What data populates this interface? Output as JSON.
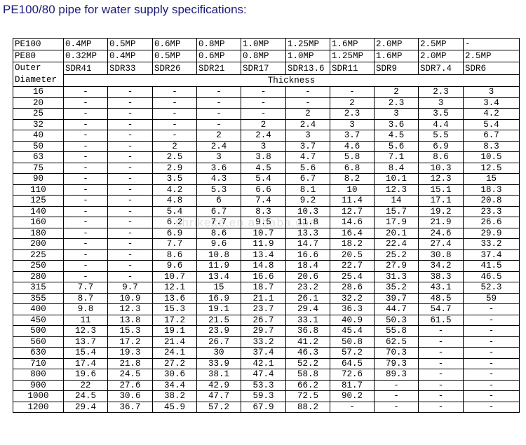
{
  "title": "PE100/80 pipe for water supply specifications:",
  "watermark": "shrikeke.en.alibaba.com",
  "table": {
    "pe100": [
      "PE100",
      "0.4MP",
      "0.5MP",
      "0.6MP",
      "0.8MP",
      "1.0MP",
      "1.25MP",
      "1.6MP",
      "2.0MP",
      "2.5MP",
      "-"
    ],
    "pe80": [
      "PE80",
      "0.32MP",
      "0.4MP",
      "0.5MP",
      "0.6MP",
      "0.8MP",
      "1.0MP",
      "1.25MP",
      "1.6MP",
      "2.0MP",
      "2.5MP"
    ],
    "sdr": [
      "SDR41",
      "SDR33",
      "SDR26",
      "SDR21",
      "SDR17",
      "SDR13.6",
      "SDR11",
      "SDR9",
      "SDR7.4",
      "SDR6"
    ],
    "outer_diameter": "Outer Diameter",
    "thickness": "Thickness",
    "rows": [
      [
        "16",
        "-",
        "-",
        "-",
        "-",
        "-",
        "-",
        "-",
        "2",
        "2.3",
        "3"
      ],
      [
        "20",
        "-",
        "-",
        "-",
        "-",
        "-",
        "-",
        "2",
        "2.3",
        "3",
        "3.4"
      ],
      [
        "25",
        "-",
        "-",
        "-",
        "-",
        "-",
        "2",
        "2.3",
        "3",
        "3.5",
        "4.2"
      ],
      [
        "32",
        "-",
        "-",
        "-",
        "-",
        "2",
        "2.4",
        "3",
        "3.6",
        "4.4",
        "5.4"
      ],
      [
        "40",
        "-",
        "-",
        "-",
        "2",
        "2.4",
        "3",
        "3.7",
        "4.5",
        "5.5",
        "6.7"
      ],
      [
        "50",
        "-",
        "-",
        "2",
        "2.4",
        "3",
        "3.7",
        "4.6",
        "5.6",
        "6.9",
        "8.3"
      ],
      [
        "63",
        "-",
        "-",
        "2.5",
        "3",
        "3.8",
        "4.7",
        "5.8",
        "7.1",
        "8.6",
        "10.5"
      ],
      [
        "75",
        "-",
        "-",
        "2.9",
        "3.6",
        "4.5",
        "5.6",
        "6.8",
        "8.4",
        "10.3",
        "12.5"
      ],
      [
        "90",
        "-",
        "-",
        "3.5",
        "4.3",
        "5.4",
        "6.7",
        "8.2",
        "10.1",
        "12.3",
        "15"
      ],
      [
        "110",
        "-",
        "-",
        "4.2",
        "5.3",
        "6.6",
        "8.1",
        "10",
        "12.3",
        "15.1",
        "18.3"
      ],
      [
        "125",
        "-",
        "-",
        "4.8",
        "6",
        "7.4",
        "9.2",
        "11.4",
        "14",
        "17.1",
        "20.8"
      ],
      [
        "140",
        "-",
        "-",
        "5.4",
        "6.7",
        "8.3",
        "10.3",
        "12.7",
        "15.7",
        "19.2",
        "23.3"
      ],
      [
        "160",
        "-",
        "-",
        "6.2",
        "7.7",
        "9.5",
        "11.8",
        "14.6",
        "17.9",
        "21.9",
        "26.6"
      ],
      [
        "180",
        "-",
        "-",
        "6.9",
        "8.6",
        "10.7",
        "13.3",
        "16.4",
        "20.1",
        "24.6",
        "29.9"
      ],
      [
        "200",
        "-",
        "-",
        "7.7",
        "9.6",
        "11.9",
        "14.7",
        "18.2",
        "22.4",
        "27.4",
        "33.2"
      ],
      [
        "225",
        "-",
        "-",
        "8.6",
        "10.8",
        "13.4",
        "16.6",
        "20.5",
        "25.2",
        "30.8",
        "37.4"
      ],
      [
        "250",
        "-",
        "-",
        "9.6",
        "11.9",
        "14.8",
        "18.4",
        "22.7",
        "27.9",
        "34.2",
        "41.5"
      ],
      [
        "280",
        "-",
        "-",
        "10.7",
        "13.4",
        "16.6",
        "20.6",
        "25.4",
        "31.3",
        "38.3",
        "46.5"
      ],
      [
        "315",
        "7.7",
        "9.7",
        "12.1",
        "15",
        "18.7",
        "23.2",
        "28.6",
        "35.2",
        "43.1",
        "52.3"
      ],
      [
        "355",
        "8.7",
        "10.9",
        "13.6",
        "16.9",
        "21.1",
        "26.1",
        "32.2",
        "39.7",
        "48.5",
        "59"
      ],
      [
        "400",
        "9.8",
        "12.3",
        "15.3",
        "19.1",
        "23.7",
        "29.4",
        "36.3",
        "44.7",
        "54.7",
        "-"
      ],
      [
        "450",
        "11",
        "13.8",
        "17.2",
        "21.5",
        "26.7",
        "33.1",
        "40.9",
        "50.3",
        "61.5",
        "-"
      ],
      [
        "500",
        "12.3",
        "15.3",
        "19.1",
        "23.9",
        "29.7",
        "36.8",
        "45.4",
        "55.8",
        "-",
        "-"
      ],
      [
        "560",
        "13.7",
        "17.2",
        "21.4",
        "26.7",
        "33.2",
        "41.2",
        "50.8",
        "62.5",
        "-",
        "-"
      ],
      [
        "630",
        "15.4",
        "19.3",
        "24.1",
        "30",
        "37.4",
        "46.3",
        "57.2",
        "70.3",
        "-",
        "-"
      ],
      [
        "710",
        "17.4",
        "21.8",
        "27.2",
        "33.9",
        "42.1",
        "52.2",
        "64.5",
        "79.3",
        "-",
        "-"
      ],
      [
        "800",
        "19.6",
        "24.5",
        "30.6",
        "38.1",
        "47.4",
        "58.8",
        "72.6",
        "89.3",
        "-",
        "-"
      ],
      [
        "900",
        "22",
        "27.6",
        "34.4",
        "42.9",
        "53.3",
        "66.2",
        "81.7",
        "-",
        "-",
        "-"
      ],
      [
        "1000",
        "24.5",
        "30.6",
        "38.2",
        "47.7",
        "59.3",
        "72.5",
        "90.2",
        "-",
        "-",
        "-"
      ],
      [
        "1200",
        "29.4",
        "36.7",
        "45.9",
        "57.2",
        "67.9",
        "88.2",
        "-",
        "-",
        "-",
        "-"
      ]
    ]
  }
}
